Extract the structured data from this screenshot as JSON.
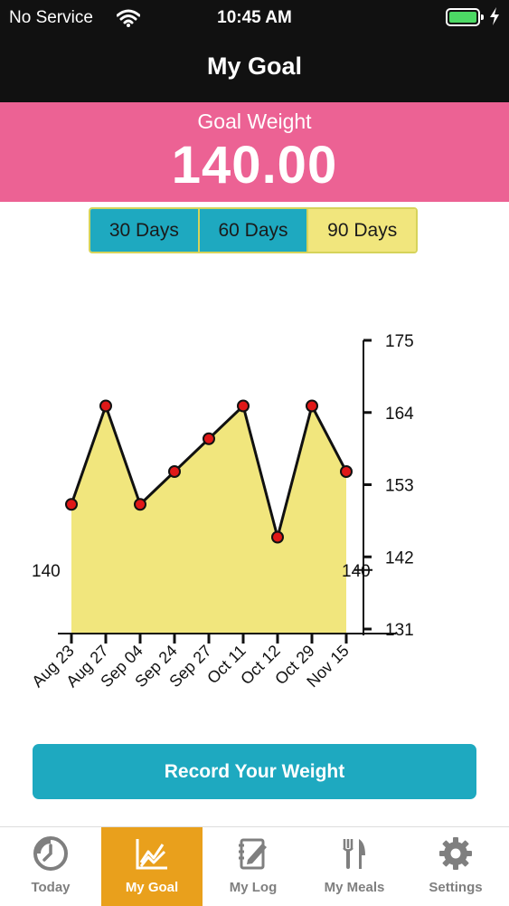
{
  "status_bar": {
    "carrier": "No Service",
    "time": "10:45 AM",
    "battery_color": "#4cd964"
  },
  "nav": {
    "title": "My Goal"
  },
  "goal": {
    "label": "Goal Weight",
    "value": "140.00"
  },
  "range_tabs": [
    {
      "label": "30 Days",
      "active": false
    },
    {
      "label": "60 Days",
      "active": false
    },
    {
      "label": "90 Days",
      "active": true
    }
  ],
  "chart_data": {
    "type": "area",
    "x": [
      "Aug 23",
      "Aug 27",
      "Sep 04",
      "Sep 24",
      "Sep 27",
      "Oct 11",
      "Oct 12",
      "Oct 29",
      "Nov 15"
    ],
    "values": [
      150,
      165,
      150,
      155,
      160,
      165,
      145,
      165,
      155
    ],
    "y_ticks": [
      131,
      142,
      153,
      164,
      175
    ],
    "ylim": [
      131,
      175
    ],
    "goal_line": {
      "value": 140,
      "label_left": "140",
      "label_right": "140"
    },
    "fill_color": "#f1e67d",
    "line_color": "#111111",
    "point_color": "#e01818"
  },
  "record_button": {
    "label": "Record Your Weight"
  },
  "tab_bar": [
    {
      "label": "Today",
      "icon": "clock-icon",
      "active": false
    },
    {
      "label": "My Goal",
      "icon": "chart-icon",
      "active": true
    },
    {
      "label": "My Log",
      "icon": "notebook-pencil-icon",
      "active": false
    },
    {
      "label": "My Meals",
      "icon": "fork-knife-icon",
      "active": false
    },
    {
      "label": "Settings",
      "icon": "gear-icon",
      "active": false
    }
  ],
  "colors": {
    "accent_pink": "#ec6294",
    "accent_teal": "#1ea9c0",
    "accent_yellow": "#f1e67d",
    "tab_active": "#e9a01c"
  }
}
